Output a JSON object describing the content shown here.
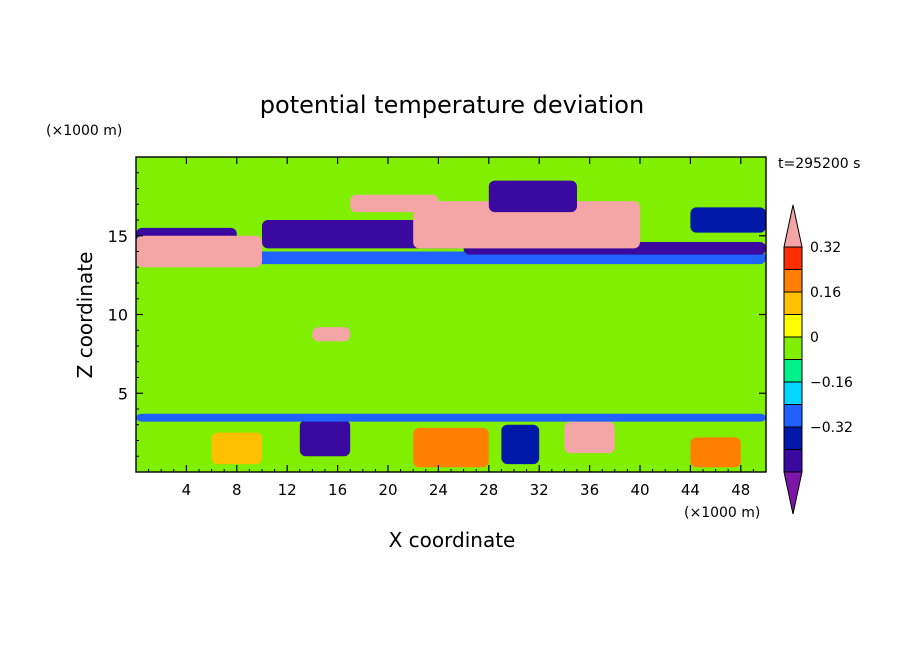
{
  "chart_data": {
    "type": "heatmap",
    "title": "potential temperature deviation",
    "xlabel": "X coordinate",
    "ylabel": "Z coordinate",
    "x_unit": "(×1000 m)",
    "y_unit": "(×1000 m)",
    "time_label": "t=295200 s",
    "xlim": [
      0,
      50
    ],
    "ylim": [
      0,
      20
    ],
    "x_ticks": [
      4,
      8,
      12,
      16,
      20,
      24,
      28,
      32,
      36,
      40,
      44,
      48
    ],
    "y_ticks": [
      5,
      10,
      15
    ],
    "colorbar": {
      "levels": [
        -0.48,
        -0.4,
        -0.32,
        -0.24,
        -0.16,
        -0.08,
        0,
        0.08,
        0.16,
        0.24,
        0.32,
        0.4
      ],
      "tick_labels": [
        "0.32",
        "0.16",
        "0",
        "−0.16",
        "−0.32"
      ],
      "tick_values": [
        0.32,
        0.16,
        0,
        -0.16,
        -0.32
      ],
      "colors": [
        "#7b16a8",
        "#3a0aa0",
        "#0018a8",
        "#1f62ff",
        "#00d6ff",
        "#00f08c",
        "#80f000",
        "#ffff00",
        "#ffc000",
        "#ff8000",
        "#ff2e00",
        "#f4a6a6"
      ]
    },
    "regions": [
      {
        "value": 0.0,
        "x": [
          0,
          50
        ],
        "z": [
          0,
          20
        ]
      },
      {
        "value": 0.04,
        "x": [
          0,
          50
        ],
        "z": [
          4,
          8
        ]
      },
      {
        "value": 0.04,
        "x": [
          6,
          50
        ],
        "z": [
          7,
          11
        ]
      },
      {
        "value": 0.04,
        "x": [
          24,
          50
        ],
        "z": [
          11,
          12.5
        ]
      },
      {
        "value": -0.2,
        "x": [
          0,
          50
        ],
        "z": [
          13.2,
          14
        ]
      },
      {
        "value": -0.4,
        "x": [
          0,
          8
        ],
        "z": [
          14,
          15.5
        ]
      },
      {
        "value": -0.4,
        "x": [
          10,
          26
        ],
        "z": [
          14.2,
          16
        ]
      },
      {
        "value": -0.4,
        "x": [
          26,
          50
        ],
        "z": [
          13.8,
          14.6
        ]
      },
      {
        "value": 0.44,
        "x": [
          0,
          10
        ],
        "z": [
          13,
          15
        ]
      },
      {
        "value": 0.44,
        "x": [
          22,
          40
        ],
        "z": [
          14.2,
          17.2
        ]
      },
      {
        "value": 0.44,
        "x": [
          17,
          24
        ],
        "z": [
          16.5,
          17.6
        ]
      },
      {
        "value": -0.4,
        "x": [
          28,
          35
        ],
        "z": [
          16.5,
          18.5
        ]
      },
      {
        "value": -0.3,
        "x": [
          44,
          50
        ],
        "z": [
          15.2,
          16.8
        ]
      },
      {
        "value": 0.44,
        "x": [
          14,
          17
        ],
        "z": [
          8.3,
          9.2
        ]
      },
      {
        "value": 0.2,
        "x": [
          6,
          10
        ],
        "z": [
          0.5,
          2.5
        ]
      },
      {
        "value": 0.3,
        "x": [
          22,
          28
        ],
        "z": [
          0.3,
          2.8
        ]
      },
      {
        "value": 0.44,
        "x": [
          34,
          38
        ],
        "z": [
          1.2,
          3.2
        ]
      },
      {
        "value": -0.4,
        "x": [
          13,
          17
        ],
        "z": [
          1,
          3.3
        ]
      },
      {
        "value": -0.3,
        "x": [
          29,
          32
        ],
        "z": [
          0.5,
          3
        ]
      },
      {
        "value": 0.3,
        "x": [
          44,
          48
        ],
        "z": [
          0.3,
          2.2
        ]
      },
      {
        "value": -0.2,
        "x": [
          0,
          50
        ],
        "z": [
          3.2,
          3.7
        ]
      }
    ]
  }
}
